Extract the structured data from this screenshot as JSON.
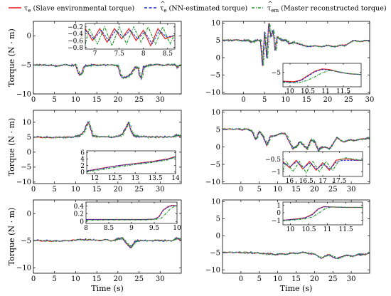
{
  "legend": {
    "items": [
      {
        "symbol": "τ",
        "sub": "e",
        "hat": false,
        "text": "(Slave environmental torque)",
        "color": "#e8201c",
        "dash": ""
      },
      {
        "symbol": "τ",
        "sub": "e",
        "hat": true,
        "text": "(NN-estimated torque)",
        "color": "#1b2fd6",
        "dash": "4,2.5"
      },
      {
        "symbol": "τ",
        "sub": "em",
        "hat": true,
        "text": "(Master reconstructed torque)",
        "color": "#1e9a2a",
        "dash": "4,2,1,2"
      }
    ]
  },
  "colors": {
    "slave": "#e8201c",
    "nn": "#1b2fd6",
    "master": "#1e9a2a"
  },
  "chart_data": [
    {
      "type": "line",
      "xlabel": "",
      "ylabel": "Torque (N · m)",
      "xlim": [
        0,
        35
      ],
      "ylim": [
        -10,
        2.5
      ],
      "xticks": [
        "0",
        "5",
        "10",
        "15",
        "20",
        "25",
        "30"
      ],
      "yticks": [
        "-10",
        "-5",
        "0"
      ],
      "x": [
        0,
        3,
        5,
        7,
        9,
        10,
        10.5,
        11,
        11.5,
        12,
        13,
        14,
        16,
        19,
        20,
        20.5,
        21,
        22,
        23,
        24,
        24.8,
        25,
        25.5,
        26,
        27,
        28,
        30,
        32,
        33.5,
        34,
        35
      ],
      "values": [
        -5,
        -5,
        -5.2,
        -5,
        -5.1,
        -5,
        -6.2,
        -6.8,
        -6.3,
        -5.2,
        -5.1,
        -5,
        -5,
        -5,
        -5.2,
        -6.6,
        -7.2,
        -7.1,
        -6.6,
        -5.4,
        -5.6,
        -6.6,
        -7.4,
        -5.4,
        -5.1,
        -5,
        -5,
        -5,
        -5,
        -5.4,
        -5
      ],
      "inset": {
        "xlim": [
          6.8,
          8.65
        ],
        "ylim": [
          -0.85,
          -0.1
        ],
        "xticks": [
          "7",
          "7.5",
          "8",
          "8.5"
        ],
        "yticks": [
          "-0.2",
          "-0.4",
          "-0.6",
          "-0.8"
        ],
        "slave": {
          "x": [
            6.8,
            6.95,
            7.1,
            7.25,
            7.4,
            7.55,
            7.7,
            7.85,
            8,
            8.15,
            8.3,
            8.45,
            8.65
          ],
          "values": [
            -0.25,
            -0.6,
            -0.25,
            -0.65,
            -0.25,
            -0.55,
            -0.25,
            -0.6,
            -0.3,
            -0.75,
            -0.25,
            -0.55,
            -0.45
          ]
        },
        "nn": {
          "x": [
            6.8,
            6.98,
            7.13,
            7.28,
            7.43,
            7.58,
            7.73,
            7.88,
            8.03,
            8.18,
            8.33,
            8.48,
            8.65
          ],
          "values": [
            -0.3,
            -0.55,
            -0.3,
            -0.6,
            -0.3,
            -0.5,
            -0.3,
            -0.55,
            -0.35,
            -0.7,
            -0.3,
            -0.5,
            -0.45
          ]
        },
        "master": {
          "x": [
            6.8,
            6.88,
            7.05,
            7.2,
            7.35,
            7.5,
            7.65,
            7.8,
            7.95,
            8.1,
            8.25,
            8.4,
            8.55,
            8.65
          ],
          "values": [
            -0.7,
            -0.25,
            -0.7,
            -0.2,
            -0.75,
            -0.2,
            -0.7,
            -0.2,
            -0.65,
            -0.2,
            -0.7,
            -0.2,
            -0.7,
            -0.4
          ]
        }
      }
    },
    {
      "type": "line",
      "xlabel": "",
      "ylabel": "",
      "xlim": [
        -5,
        30
      ],
      "ylim": [
        -10.5,
        10.5
      ],
      "xticks": [
        "0",
        "5",
        "10",
        "15",
        "20",
        "25",
        "30"
      ],
      "yticks": [
        "-10",
        "-5",
        "0",
        "5",
        "10"
      ],
      "x": [
        -5,
        -2,
        0,
        1,
        2,
        3,
        4,
        4.5,
        5,
        5.5,
        6,
        6.5,
        7,
        7.5,
        8,
        9,
        10,
        11,
        12,
        14,
        16,
        18,
        20,
        22,
        24,
        26,
        28,
        30
      ],
      "values": [
        5,
        5,
        5,
        5,
        4.5,
        5,
        5,
        -2.5,
        7.5,
        0,
        10,
        6,
        8,
        2,
        6,
        5,
        5,
        4,
        4.5,
        3.5,
        3.3,
        3.3,
        3.4,
        3.3,
        3.6,
        4.8,
        4.8,
        4.8
      ],
      "inset": {
        "xlim": [
          9.8,
          12
        ],
        "ylim": [
          -6.3,
          -4.2
        ],
        "xticks": [
          "10",
          "10.5",
          "11",
          "11.5"
        ],
        "yticks": [
          "-5"
        ],
        "slave": {
          "x": [
            9.8,
            10.1,
            10.3,
            10.5,
            10.7,
            10.9,
            11.1,
            11.4,
            11.7,
            12
          ],
          "values": [
            -5.8,
            -5.85,
            -5.7,
            -5.3,
            -4.9,
            -4.7,
            -4.75,
            -5,
            -5.15,
            -5.2
          ]
        },
        "nn": {
          "x": [
            9.8,
            10.1,
            10.3,
            10.5,
            10.7,
            10.9,
            11.1,
            11.4,
            11.7,
            12
          ],
          "values": [
            -5.85,
            -5.9,
            -5.75,
            -5.35,
            -4.95,
            -4.75,
            -4.8,
            -5,
            -5.15,
            -5.2
          ]
        },
        "master": {
          "x": [
            9.8,
            10.1,
            10.3,
            10.5,
            10.7,
            10.9,
            11.1,
            11.3,
            11.6,
            12
          ],
          "values": [
            -5.9,
            -5.95,
            -5.9,
            -5.7,
            -5.4,
            -5.05,
            -4.85,
            -4.9,
            -5.1,
            -5.2
          ]
        }
      }
    },
    {
      "type": "line",
      "xlabel": "",
      "ylabel": "Torque (N · m)",
      "xlim": [
        0,
        35
      ],
      "ylim": [
        -10.5,
        14
      ],
      "xticks": [
        "0",
        "5",
        "10",
        "15",
        "20",
        "25",
        "30"
      ],
      "yticks": [
        "-10",
        "-5",
        "0",
        "5",
        "10"
      ],
      "x": [
        0,
        5,
        8,
        10,
        11,
        12,
        12.5,
        13,
        13.5,
        14,
        15,
        18,
        20,
        21,
        22,
        22.5,
        23,
        23.5,
        24,
        25,
        27,
        30,
        33,
        34,
        35
      ],
      "values": [
        5,
        5,
        5,
        5.3,
        5.5,
        7,
        9,
        10,
        8,
        5.5,
        5.2,
        5.1,
        5.2,
        6,
        8.5,
        10,
        7.5,
        6,
        5.3,
        5.2,
        5.1,
        5.1,
        5.1,
        5.8,
        5
      ],
      "inset": {
        "xlim": [
          11.8,
          14
        ],
        "ylim": [
          -0.5,
          6.5
        ],
        "xticks": [
          "12",
          "12.5",
          "13",
          "13.5",
          "14"
        ],
        "yticks": [
          "6",
          "4",
          "2",
          "0"
        ],
        "slave": {
          "x": [
            11.8,
            12.2,
            12.6,
            13,
            13.4,
            13.8,
            14
          ],
          "values": [
            0.3,
            1.2,
            2,
            2.6,
            3.2,
            4,
            4.8
          ]
        },
        "nn": {
          "x": [
            11.8,
            12.2,
            12.6,
            13,
            13.4,
            13.8,
            14
          ],
          "values": [
            0.3,
            1.1,
            2,
            2.5,
            3.1,
            3.9,
            4.7
          ]
        },
        "master": {
          "x": [
            11.8,
            12.2,
            12.6,
            13,
            13.4,
            13.8,
            14
          ],
          "values": [
            0.1,
            0.8,
            1.6,
            2.3,
            2.9,
            3.7,
            4.5
          ]
        }
      }
    },
    {
      "type": "line",
      "xlabel": "",
      "ylabel": "",
      "xlim": [
        -5,
        35
      ],
      "ylim": [
        -10.5,
        10.5
      ],
      "xticks": [
        "0",
        "5",
        "10",
        "15",
        "20",
        "25",
        "30"
      ],
      "yticks": [
        "-10",
        "-5",
        "0",
        "5",
        "10"
      ],
      "x": [
        -5,
        0,
        2,
        3,
        4,
        5,
        6,
        7,
        8,
        10,
        12,
        14,
        15,
        16,
        17,
        18,
        19,
        20,
        21,
        22,
        24,
        26,
        28,
        30,
        32,
        34,
        35
      ],
      "values": [
        5,
        5,
        5,
        4.5,
        2,
        4.5,
        3,
        0.5,
        3,
        3.5,
        4,
        -0.5,
        0,
        1.5,
        0.5,
        -0.5,
        2,
        1.5,
        -1,
        0,
        -0.5,
        2.5,
        1.5,
        2,
        2,
        2.5,
        2.5
      ],
      "inset": {
        "xlim": [
          15.8,
          18.2
        ],
        "ylim": [
          -1.2,
          -0.2
        ],
        "xticks": [
          "16",
          "16.5",
          "17",
          "17.5"
        ],
        "yticks": [
          "-0.5",
          "-1"
        ],
        "slave": {
          "x": [
            15.8,
            16,
            16.2,
            16.4,
            16.6,
            16.8,
            17,
            17.2,
            17.4,
            17.6,
            17.8,
            18,
            18.2
          ],
          "values": [
            -0.6,
            -0.85,
            -0.55,
            -0.9,
            -0.6,
            -0.95,
            -0.65,
            -0.95,
            -0.55,
            -0.5,
            -0.5,
            -0.55,
            -0.55
          ]
        },
        "nn": {
          "x": [
            15.8,
            16.02,
            16.22,
            16.42,
            16.62,
            16.82,
            17.02,
            17.22,
            17.42,
            17.62,
            17.82,
            18,
            18.2
          ],
          "values": [
            -0.65,
            -0.8,
            -0.6,
            -0.85,
            -0.65,
            -0.9,
            -0.7,
            -0.9,
            -0.6,
            -0.55,
            -0.55,
            -0.55,
            -0.55
          ]
        },
        "master": {
          "x": [
            15.8,
            15.9,
            16.1,
            16.3,
            16.5,
            16.7,
            16.9,
            17.1,
            17.3,
            17.5,
            17.7,
            17.9,
            18.2
          ],
          "values": [
            -0.95,
            -0.6,
            -1,
            -0.6,
            -1.05,
            -0.6,
            -1,
            -0.6,
            -0.95,
            -0.55,
            -0.45,
            -0.5,
            -0.55
          ]
        }
      }
    },
    {
      "type": "line",
      "xlabel": "Time (s)",
      "ylabel": "Torque (N · m)",
      "xlim": [
        0,
        35
      ],
      "ylim": [
        -11,
        2.5
      ],
      "xticks": [
        "0",
        "5",
        "10",
        "15",
        "20",
        "25",
        "30"
      ],
      "yticks": [
        "-10",
        "-5",
        "0"
      ],
      "x": [
        0,
        5,
        10,
        12,
        15,
        19,
        20,
        21,
        22,
        23,
        23.5,
        24,
        25,
        28,
        30,
        33,
        34,
        35
      ],
      "values": [
        -5,
        -5,
        -4.9,
        -4.8,
        -4.9,
        -4.9,
        -4.7,
        -4.5,
        -5.5,
        -6.3,
        -5.8,
        -5.1,
        -5,
        -5,
        -5,
        -5,
        -4.5,
        -5
      ],
      "inset": {
        "xlim": [
          8,
          10
        ],
        "ylim": [
          -0.05,
          0.5
        ],
        "xticks": [
          "8",
          "8.5",
          "9",
          "9.5",
          "10"
        ],
        "yticks": [
          "0.4",
          "0.2",
          "0"
        ],
        "slave": {
          "x": [
            8,
            8.5,
            9,
            9.3,
            9.5,
            9.6,
            9.7,
            9.8,
            9.9,
            10
          ],
          "values": [
            0.05,
            0.05,
            0.05,
            0.05,
            0.06,
            0.12,
            0.3,
            0.38,
            0.42,
            0.4
          ]
        },
        "nn": {
          "x": [
            8,
            8.5,
            9,
            9.3,
            9.5,
            9.6,
            9.7,
            9.8,
            9.9,
            10
          ],
          "values": [
            0.05,
            0.05,
            0.05,
            0.05,
            0.06,
            0.11,
            0.29,
            0.37,
            0.41,
            0.4
          ]
        },
        "master": {
          "x": [
            8,
            8.5,
            9,
            9.3,
            9.5,
            9.65,
            9.75,
            9.85,
            9.95,
            10
          ],
          "values": [
            0.03,
            0.04,
            0.04,
            0.04,
            0.05,
            0.08,
            0.2,
            0.32,
            0.4,
            0.41
          ]
        }
      }
    },
    {
      "type": "line",
      "xlabel": "Time (s)",
      "ylabel": "",
      "xlim": [
        -5,
        35
      ],
      "ylim": [
        -11,
        10.5
      ],
      "xticks": [
        "0",
        "5",
        "10",
        "15",
        "20",
        "25",
        "30"
      ],
      "yticks": [
        "-10",
        "-5",
        "0",
        "5",
        "10"
      ],
      "x": [
        -5,
        0,
        3,
        5,
        8,
        10,
        12,
        14,
        16,
        18,
        20,
        22,
        24,
        26,
        28,
        30,
        32,
        33,
        35
      ],
      "values": [
        -5,
        -5,
        -5,
        -5.2,
        -5.3,
        -5.5,
        -5.3,
        -5.2,
        -5,
        -5,
        -5.5,
        -6.5,
        -5.5,
        -6.8,
        -5.8,
        -6,
        -5.5,
        -5.5,
        -5
      ],
      "inset": {
        "xlim": [
          9.8,
          11.95
        ],
        "ylim": [
          -1.6,
          1.4
        ],
        "xticks": [
          "10",
          "10.5",
          "11",
          "11.5"
        ],
        "yticks": [
          "1",
          "0",
          "-1"
        ],
        "slave": {
          "x": [
            9.8,
            10,
            10.2,
            10.4,
            10.6,
            10.75,
            10.9,
            11.1,
            11.5,
            11.95
          ],
          "values": [
            -1,
            -0.9,
            -0.8,
            -0.65,
            -0.2,
            0.5,
            0.8,
            0.75,
            0.7,
            0.7
          ]
        },
        "nn": {
          "x": [
            9.8,
            10,
            10.2,
            10.4,
            10.6,
            10.75,
            10.9,
            11.1,
            11.5,
            11.95
          ],
          "values": [
            -1,
            -0.9,
            -0.85,
            -0.7,
            -0.25,
            0.45,
            0.78,
            0.75,
            0.7,
            0.7
          ]
        },
        "master": {
          "x": [
            9.8,
            10,
            10.2,
            10.4,
            10.6,
            10.8,
            10.95,
            11.1,
            11.5,
            11.95
          ],
          "values": [
            -1.05,
            -1,
            -0.9,
            -0.8,
            -0.55,
            0.05,
            0.55,
            0.75,
            0.72,
            0.7
          ]
        }
      }
    }
  ]
}
